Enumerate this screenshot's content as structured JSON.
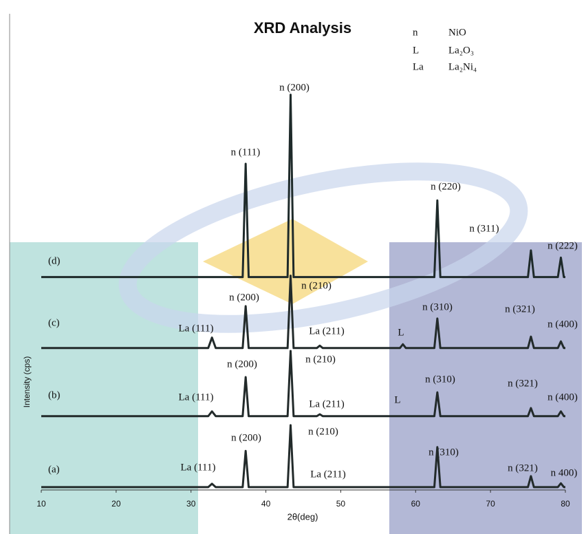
{
  "chart_data": {
    "type": "line",
    "title": "XRD Analysis",
    "x_label": "2θ(deg)",
    "y_label": "Intensity (cps)",
    "xlim": [
      10,
      80
    ],
    "xticks": [
      10,
      20,
      30,
      40,
      50,
      60,
      70,
      80
    ],
    "ylim": [
      0,
      100
    ],
    "legend_key": [
      {
        "symbol": "n",
        "phase": "NiO"
      },
      {
        "symbol": "L",
        "phase": "La₂O₃"
      },
      {
        "symbol": "La",
        "phase": "La₂Ni₄"
      }
    ],
    "series": [
      {
        "name": "(d)",
        "color": "#1e2a2a",
        "x": [
          10,
          30,
          36.9,
          37.3,
          37.7,
          42.9,
          43.3,
          43.7,
          62.5,
          62.9,
          63.3,
          75.0,
          75.4,
          75.8,
          79.0,
          79.4,
          79.8,
          80
        ],
        "values": [
          44.7,
          44.7,
          44.7,
          68.5,
          44.7,
          44.7,
          83,
          44.7,
          44.7,
          60.8,
          44.7,
          44.7,
          50.3,
          44.7,
          44.7,
          48.8,
          44.7,
          44.7
        ]
      },
      {
        "name": "(c)",
        "color": "#222a2a",
        "x": [
          10,
          32.3,
          32.8,
          33.3,
          36.9,
          37.3,
          37.7,
          42.9,
          43.3,
          43.7,
          46.8,
          47.2,
          47.6,
          57.9,
          58.3,
          58.7,
          62.5,
          62.9,
          63.3,
          75.0,
          75.4,
          75.8,
          79.0,
          79.4,
          79.8,
          80
        ],
        "values": [
          29.8,
          29.8,
          32,
          29.8,
          29.8,
          38.6,
          29.8,
          29.8,
          45,
          29.8,
          29.8,
          30.3,
          29.8,
          29.8,
          30.6,
          29.8,
          29.8,
          36,
          29.8,
          29.8,
          32.2,
          29.8,
          29.8,
          31.2,
          29.8,
          29.8
        ]
      },
      {
        "name": "(b)",
        "color": "#222a2a",
        "x": [
          10,
          32.3,
          32.8,
          33.3,
          36.9,
          37.3,
          37.7,
          42.9,
          43.3,
          43.7,
          46.8,
          47.2,
          47.6,
          62.5,
          62.9,
          63.3,
          75.0,
          75.4,
          75.8,
          79.0,
          79.4,
          79.8,
          80
        ],
        "values": [
          15.5,
          15.5,
          16.5,
          15.5,
          15.5,
          23.7,
          15.5,
          15.5,
          29.2,
          15.5,
          15.5,
          15.9,
          15.5,
          15.5,
          20.5,
          15.5,
          15.5,
          17.2,
          15.5,
          15.5,
          16.5,
          15.5,
          15.5
        ]
      },
      {
        "name": "(a)",
        "color": "#222a2a",
        "x": [
          10,
          32.3,
          32.8,
          33.3,
          36.9,
          37.3,
          37.7,
          42.9,
          43.3,
          43.7,
          62.5,
          62.9,
          63.3,
          75.0,
          75.4,
          75.8,
          79.0,
          79.4,
          79.8,
          80
        ],
        "values": [
          0.6,
          0.6,
          1.3,
          0.6,
          0.6,
          8.2,
          0.6,
          0.6,
          13.6,
          0.6,
          0.6,
          9,
          0.6,
          0.6,
          2.9,
          0.6,
          0.6,
          1.4,
          0.6,
          0.6
        ]
      }
    ],
    "annotations": [
      "n (200)",
      "n (111)",
      "n (220)",
      "n (311)",
      "n (222)",
      "n (210)",
      "n (200)",
      "La (111)",
      "La (211)",
      "L",
      "n (310)",
      "n (321)",
      "n (400)",
      "n (210)",
      "n (200)",
      "La (111)",
      "La (211)",
      "L",
      "n (310)",
      "n (321)",
      "n (400)",
      "n (210)",
      "n (200)",
      "La (111)",
      "La (211)",
      "n (310)",
      "n (321)",
      "n 400)"
    ]
  }
}
